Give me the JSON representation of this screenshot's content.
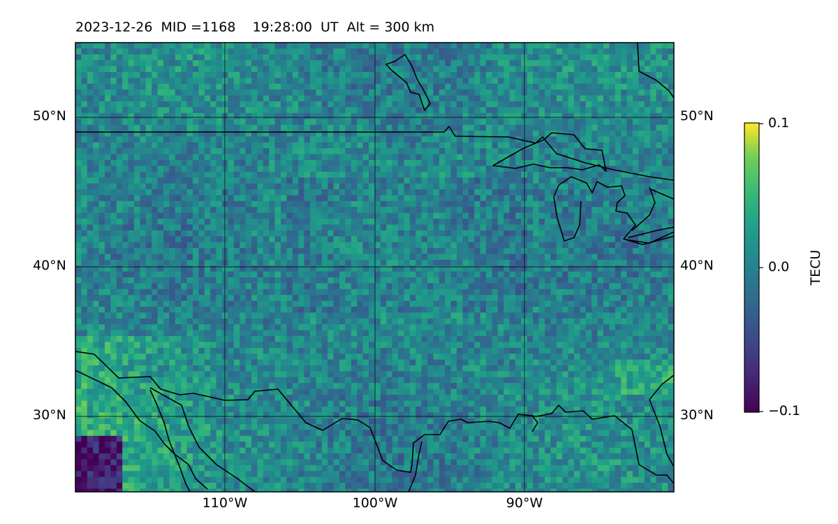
{
  "header": {
    "title": "2023-12-26  MID =1168    19:28:00  UT  Alt = 300 km"
  },
  "map": {
    "extent": {
      "lon": [
        -120,
        -80
      ],
      "lat": [
        25,
        55
      ]
    },
    "parallels_labels": [
      "50°N",
      "40°N",
      "30°N"
    ],
    "meridians_labels": [
      "110°W",
      "100°W",
      "90°W"
    ]
  },
  "colorbar": {
    "label": "TECU",
    "colormap": "viridis",
    "range": [
      -0.1,
      0.1
    ],
    "ticks": [
      "0.1",
      "0.0",
      "−0.1"
    ]
  },
  "colors": {
    "viridis_low": "#440154",
    "viridis_mid": "#21918c",
    "viridis_high": "#fde725",
    "border": "#000000"
  }
}
